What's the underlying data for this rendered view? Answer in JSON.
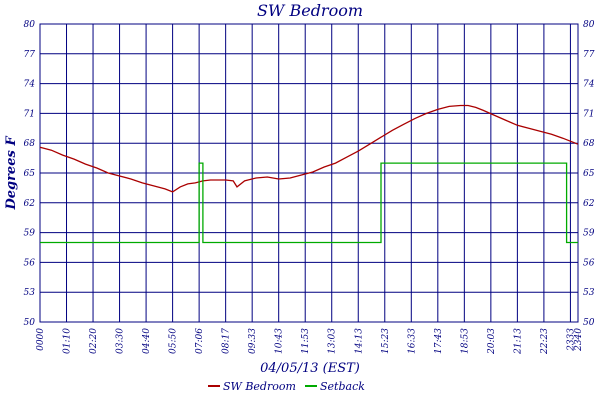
{
  "chart_data": {
    "type": "line",
    "title": "SW Bedroom",
    "xlabel": "04/05/13 (EST)",
    "ylabel": "Degrees F",
    "ylim": [
      50,
      80
    ],
    "xlim": [
      "00:00",
      "23:40"
    ],
    "y_ticks": [
      "50",
      "53",
      "56",
      "59",
      "62",
      "65",
      "68",
      "71",
      "74",
      "77",
      "80"
    ],
    "x_ticks": [
      "00:00",
      "01:10",
      "02:20",
      "03:30",
      "04:40",
      "05:50",
      "07:00",
      "08:10",
      "09:20",
      "10:30",
      "11:40",
      "12:50",
      "14:00",
      "15:10",
      "16:20",
      "17:30",
      "18:40",
      "19:50",
      "21:00",
      "22:10",
      "23:20",
      "23:40"
    ],
    "x_tick_labels": [
      "0000",
      "01:10",
      "02:20",
      "03:30",
      "04:40",
      "05:50",
      "07:06",
      "08:17",
      "09:33",
      "10:43",
      "11:53",
      "13:03",
      "14:13",
      "15:23",
      "16:33",
      "17:43",
      "18:53",
      "20:03",
      "21:13",
      "22:23",
      "2333",
      "2340"
    ],
    "grid": true,
    "legend_position": "bottom",
    "series": [
      {
        "name": "SW Bedroom",
        "color": "#aa0000",
        "x": [
          "00:00",
          "00:30",
          "01:00",
          "01:30",
          "02:00",
          "02:30",
          "03:00",
          "03:30",
          "04:00",
          "04:30",
          "05:00",
          "05:30",
          "05:50",
          "06:10",
          "06:30",
          "06:50",
          "07:10",
          "07:30",
          "07:50",
          "08:10",
          "08:30",
          "08:40",
          "09:00",
          "09:30",
          "10:00",
          "10:30",
          "11:00",
          "11:30",
          "12:00",
          "12:30",
          "13:00",
          "13:30",
          "14:00",
          "14:30",
          "15:00",
          "15:30",
          "16:00",
          "16:30",
          "17:00",
          "17:30",
          "18:00",
          "18:30",
          "18:50",
          "19:10",
          "19:30",
          "20:00",
          "20:30",
          "21:00",
          "21:30",
          "22:00",
          "22:30",
          "23:00",
          "23:20",
          "23:40"
        ],
        "values": [
          67.6,
          67.3,
          66.8,
          66.4,
          65.9,
          65.5,
          65.0,
          64.7,
          64.4,
          64.0,
          63.7,
          63.4,
          63.1,
          63.6,
          63.9,
          64.0,
          64.2,
          64.3,
          64.3,
          64.3,
          64.2,
          63.6,
          64.2,
          64.5,
          64.6,
          64.4,
          64.5,
          64.8,
          65.1,
          65.6,
          66.0,
          66.6,
          67.2,
          67.9,
          68.6,
          69.3,
          69.9,
          70.5,
          71.0,
          71.4,
          71.7,
          71.8,
          71.8,
          71.6,
          71.3,
          70.8,
          70.3,
          69.8,
          69.5,
          69.2,
          68.9,
          68.5,
          68.2,
          67.9
        ]
      },
      {
        "name": "Setback",
        "color": "#00aa00",
        "x": [
          "00:00",
          "07:00",
          "07:00",
          "07:10",
          "07:10",
          "15:00",
          "15:00",
          "23:10",
          "23:10",
          "23:40"
        ],
        "values": [
          58,
          58,
          66,
          66,
          58,
          58,
          66,
          66,
          58,
          58
        ]
      }
    ]
  }
}
